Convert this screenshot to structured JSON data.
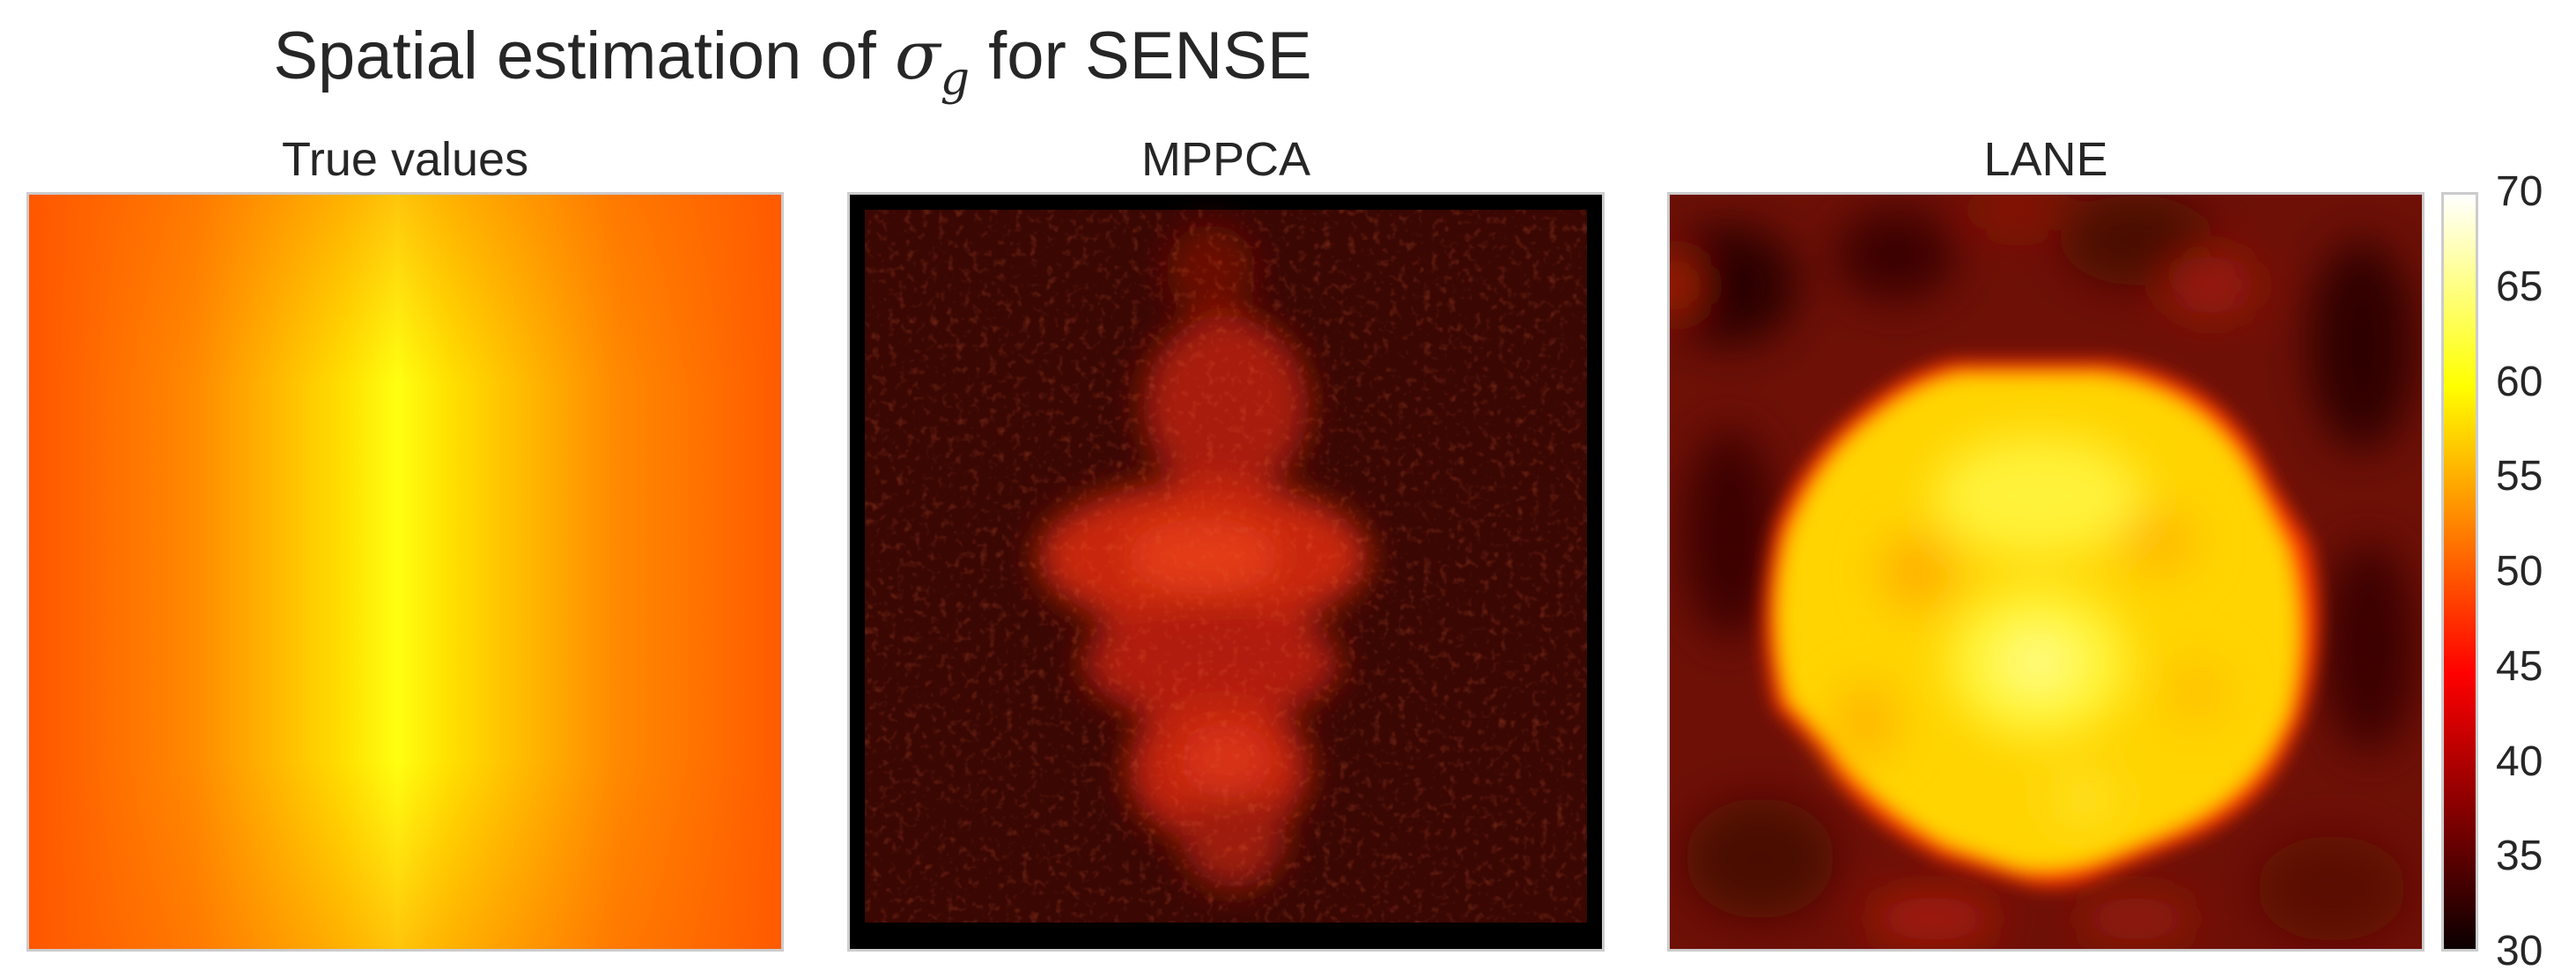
{
  "title": {
    "prefix": "Spatial estimation of ",
    "symbol": "σ",
    "subscript": "g",
    "suffix": " for SENSE"
  },
  "chart_data": {
    "type": "heatmap",
    "colormap": "hot",
    "grid": false,
    "panels": [
      {
        "title": "True values",
        "description": "smooth field, maximum (~60) in a vertical band at center, decreasing to ~50 at the left and right edges"
      },
      {
        "title": "MPPCA",
        "description": "noisy low estimates (~33-36) with a brighter central region reaching ~45-48"
      },
      {
        "title": "LANE",
        "description": "bright central blob (~55-63) surrounded by a darker region (~33-40)"
      }
    ],
    "colorbar": {
      "min": 30,
      "max": 70,
      "ticks": [
        "30",
        "35",
        "40",
        "45",
        "50",
        "55",
        "60",
        "65",
        "70"
      ]
    }
  }
}
